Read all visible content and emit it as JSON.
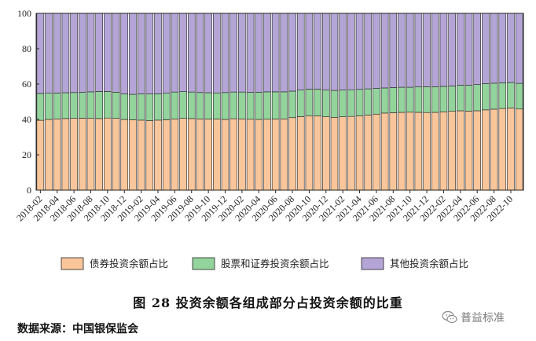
{
  "chart_data": {
    "type": "bar",
    "stacked": true,
    "categories": [
      "2018-02",
      "2018-03",
      "2018-04",
      "2018-05",
      "2018-06",
      "2018-07",
      "2018-08",
      "2018-09",
      "2018-10",
      "2018-11",
      "2018-12",
      "2019-01",
      "2019-02",
      "2019-03",
      "2019-04",
      "2019-05",
      "2019-06",
      "2019-07",
      "2019-08",
      "2019-09",
      "2019-10",
      "2019-11",
      "2019-12",
      "2020-01",
      "2020-02",
      "2020-03",
      "2020-04",
      "2020-05",
      "2020-06",
      "2020-07",
      "2020-08",
      "2020-09",
      "2020-10",
      "2020-11",
      "2020-12",
      "2021-01",
      "2021-02",
      "2021-03",
      "2021-04",
      "2021-05",
      "2021-06",
      "2021-07",
      "2021-08",
      "2021-09",
      "2021-10",
      "2021-11",
      "2021-12",
      "2022-01",
      "2022-02",
      "2022-03",
      "2022-04",
      "2022-05",
      "2022-06",
      "2022-07",
      "2022-08",
      "2022-09",
      "2022-10",
      "2022-11"
    ],
    "tick_labels": [
      "2018-02",
      "2018-04",
      "2018-06",
      "2018-08",
      "2018-10",
      "2018-12",
      "2019-02",
      "2019-04",
      "2019-06",
      "2019-08",
      "2019-10",
      "2019-12",
      "2020-02",
      "2020-04",
      "2020-06",
      "2020-08",
      "2020-10",
      "2020-12",
      "2021-02",
      "2021-04",
      "2021-06",
      "2021-08",
      "2021-10",
      "2021-12",
      "2022-02",
      "2022-04",
      "2022-06",
      "2022-08",
      "2022-10"
    ],
    "series": [
      {
        "name": "债券投资余额占比",
        "color": "#f9c59a",
        "values": [
          39.5,
          40.0,
          40.3,
          40.5,
          40.6,
          40.7,
          40.6,
          40.5,
          40.8,
          40.6,
          40.0,
          39.8,
          39.6,
          39.3,
          39.6,
          39.8,
          40.3,
          40.6,
          40.5,
          40.3,
          40.2,
          40.2,
          40.0,
          40.4,
          40.3,
          40.1,
          40.0,
          40.1,
          40.2,
          40.3,
          41.0,
          41.6,
          42.1,
          42.0,
          41.5,
          41.2,
          41.5,
          41.7,
          42.0,
          42.5,
          43.0,
          43.6,
          43.8,
          44.0,
          44.1,
          44.0,
          43.9,
          44.0,
          44.3,
          44.6,
          44.9,
          44.7,
          44.9,
          45.4,
          45.8,
          46.2,
          46.5,
          45.9
        ]
      },
      {
        "name": "股票和证券投资余额占比",
        "color": "#93d39c",
        "values": [
          15.2,
          14.8,
          14.6,
          14.6,
          14.6,
          14.6,
          15.0,
          15.3,
          15.0,
          14.8,
          14.4,
          14.4,
          14.8,
          15.1,
          14.9,
          15.0,
          15.2,
          15.1,
          15.0,
          14.9,
          14.9,
          14.8,
          15.2,
          15.1,
          15.2,
          15.2,
          15.4,
          15.5,
          15.4,
          15.3,
          15.0,
          15.0,
          15.0,
          15.1,
          15.1,
          15.2,
          15.1,
          15.1,
          15.0,
          14.8,
          14.5,
          14.2,
          14.2,
          14.2,
          14.1,
          14.4,
          14.6,
          14.5,
          14.4,
          14.3,
          14.4,
          14.6,
          14.8,
          14.8,
          14.7,
          14.5,
          14.4,
          14.5
        ]
      },
      {
        "name": "其他投资余额占比",
        "color": "#b4a5d6",
        "values": [
          45.3,
          45.2,
          45.1,
          44.9,
          44.8,
          44.7,
          44.4,
          44.2,
          44.2,
          44.6,
          45.6,
          45.8,
          45.6,
          45.6,
          45.5,
          45.2,
          44.5,
          44.3,
          44.5,
          44.8,
          44.9,
          45.0,
          44.8,
          44.5,
          44.5,
          44.7,
          44.6,
          44.4,
          44.4,
          44.4,
          44.0,
          43.4,
          42.9,
          42.9,
          43.4,
          43.6,
          43.4,
          43.2,
          43.0,
          42.7,
          42.5,
          42.2,
          42.0,
          41.8,
          41.8,
          41.6,
          41.5,
          41.5,
          41.3,
          41.1,
          40.7,
          40.7,
          40.3,
          39.8,
          39.5,
          39.3,
          39.1,
          39.6
        ]
      }
    ],
    "ylim": [
      0,
      100
    ],
    "yticks": [
      0,
      20,
      40,
      60,
      80,
      100
    ],
    "xlabel": "",
    "ylabel": "",
    "legend_position": "bottom"
  },
  "caption": {
    "text": "图 28   投资余额各组成部分占投资余额的比重"
  },
  "source": {
    "text": "数据来源：中国银保监会"
  },
  "watermark": {
    "text": "普益标准",
    "icon": "wechat-icon"
  }
}
